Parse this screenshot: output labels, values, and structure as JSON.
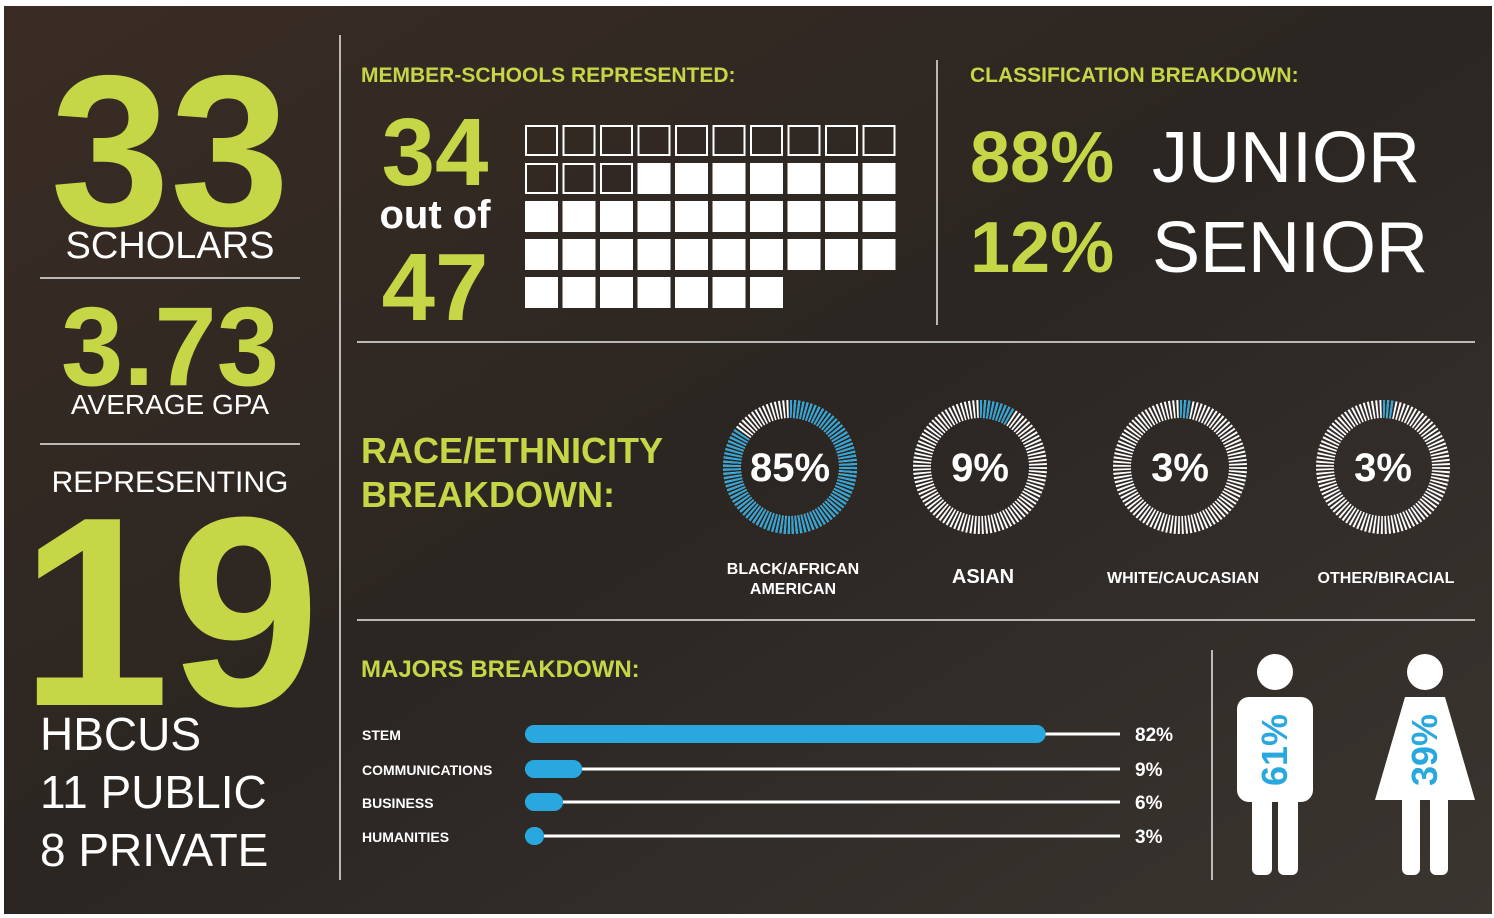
{
  "scholars": {
    "count": 33,
    "label": "SCHOLARS"
  },
  "gpa": {
    "value": 3.73,
    "label": "AVERAGE GPA"
  },
  "hbcus": {
    "intro": "REPRESENTING",
    "count": 19,
    "label": "HBCUS",
    "public": "11 PUBLIC",
    "private": "8 PRIVATE"
  },
  "member_schools": {
    "title": "MEMBER-SCHOOLS REPRESENTED:",
    "represented": 34,
    "connector": "out of",
    "total": 47
  },
  "classification": {
    "title": "CLASSIFICATION BREAKDOWN:",
    "items": [
      {
        "value": 88,
        "value_label": "88%",
        "label": "JUNIOR"
      },
      {
        "value": 12,
        "value_label": "12%",
        "label": "SENIOR"
      }
    ]
  },
  "race": {
    "title": [
      "RACE/ETHNICITY",
      "BREAKDOWN:"
    ],
    "items": [
      {
        "value": 85,
        "value_label": "85%",
        "label": [
          "BLACK/AFRICAN",
          "AMERICAN"
        ]
      },
      {
        "value": 9,
        "value_label": "9%",
        "label": [
          "ASIAN"
        ]
      },
      {
        "value": 3,
        "value_label": "3%",
        "label": [
          "WHITE/CAUCASIAN"
        ]
      },
      {
        "value": 3,
        "value_label": "3%",
        "label": [
          "OTHER/BIRACIAL"
        ]
      }
    ]
  },
  "majors": {
    "title": "MAJORS BREAKDOWN:",
    "items": [
      {
        "name": "STEM",
        "value": 82,
        "value_label": "82%"
      },
      {
        "name": "COMMUNICATIONS",
        "value": 9,
        "value_label": "9%"
      },
      {
        "name": "BUSINESS",
        "value": 6,
        "value_label": "6%"
      },
      {
        "name": "HUMANITIES",
        "value": 3,
        "value_label": "3%"
      }
    ]
  },
  "gender": [
    {
      "value": 61,
      "value_label": "61%"
    },
    {
      "value": 39,
      "value_label": "39%"
    }
  ]
}
